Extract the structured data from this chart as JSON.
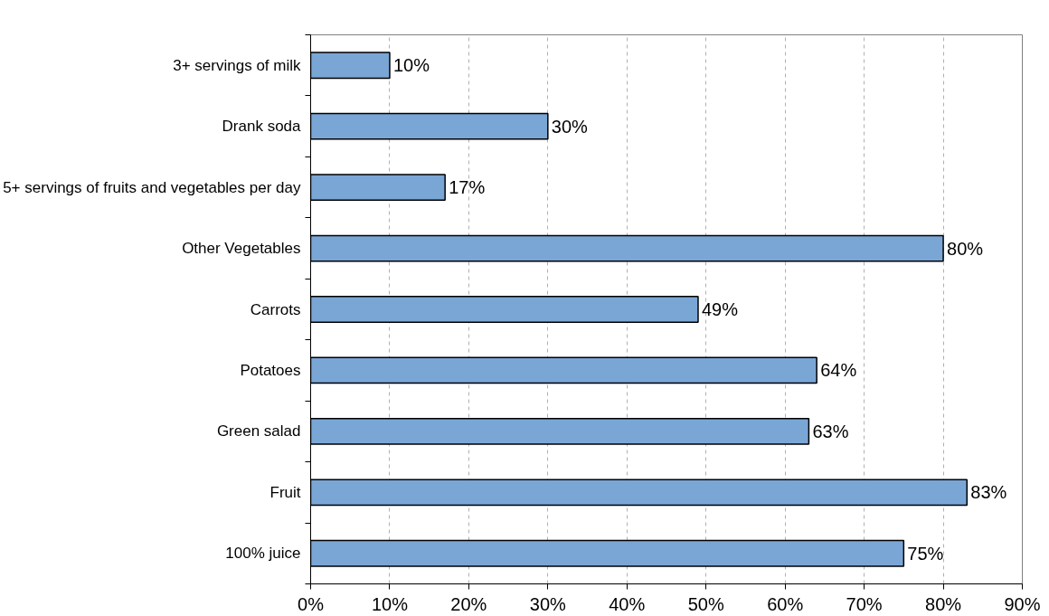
{
  "chart_data": {
    "type": "bar",
    "orientation": "horizontal",
    "categories": [
      "3+ servings of milk",
      "Drank soda",
      "5+ servings of fruits and vegetables per day",
      "Other Vegetables",
      "Carrots",
      "Potatoes",
      "Green salad",
      "Fruit",
      "100% juice"
    ],
    "values": [
      10,
      30,
      17,
      80,
      49,
      64,
      63,
      83,
      75
    ],
    "value_labels": [
      "10%",
      "30%",
      "17%",
      "80%",
      "49%",
      "64%",
      "63%",
      "83%",
      "75%"
    ],
    "color": "#7aa6d6",
    "xlim": [
      0,
      90
    ],
    "xticks": [
      {
        "value": 0,
        "label": "0%"
      },
      {
        "value": 10,
        "label": "10%"
      },
      {
        "value": 20,
        "label": "20%"
      },
      {
        "value": 30,
        "label": "30%"
      },
      {
        "value": 40,
        "label": "40%"
      },
      {
        "value": 50,
        "label": "50%"
      },
      {
        "value": 60,
        "label": "60%"
      },
      {
        "value": 70,
        "label": "70%"
      },
      {
        "value": 80,
        "label": "80%"
      },
      {
        "value": 90,
        "label": "90%"
      }
    ],
    "grid": "x"
  }
}
